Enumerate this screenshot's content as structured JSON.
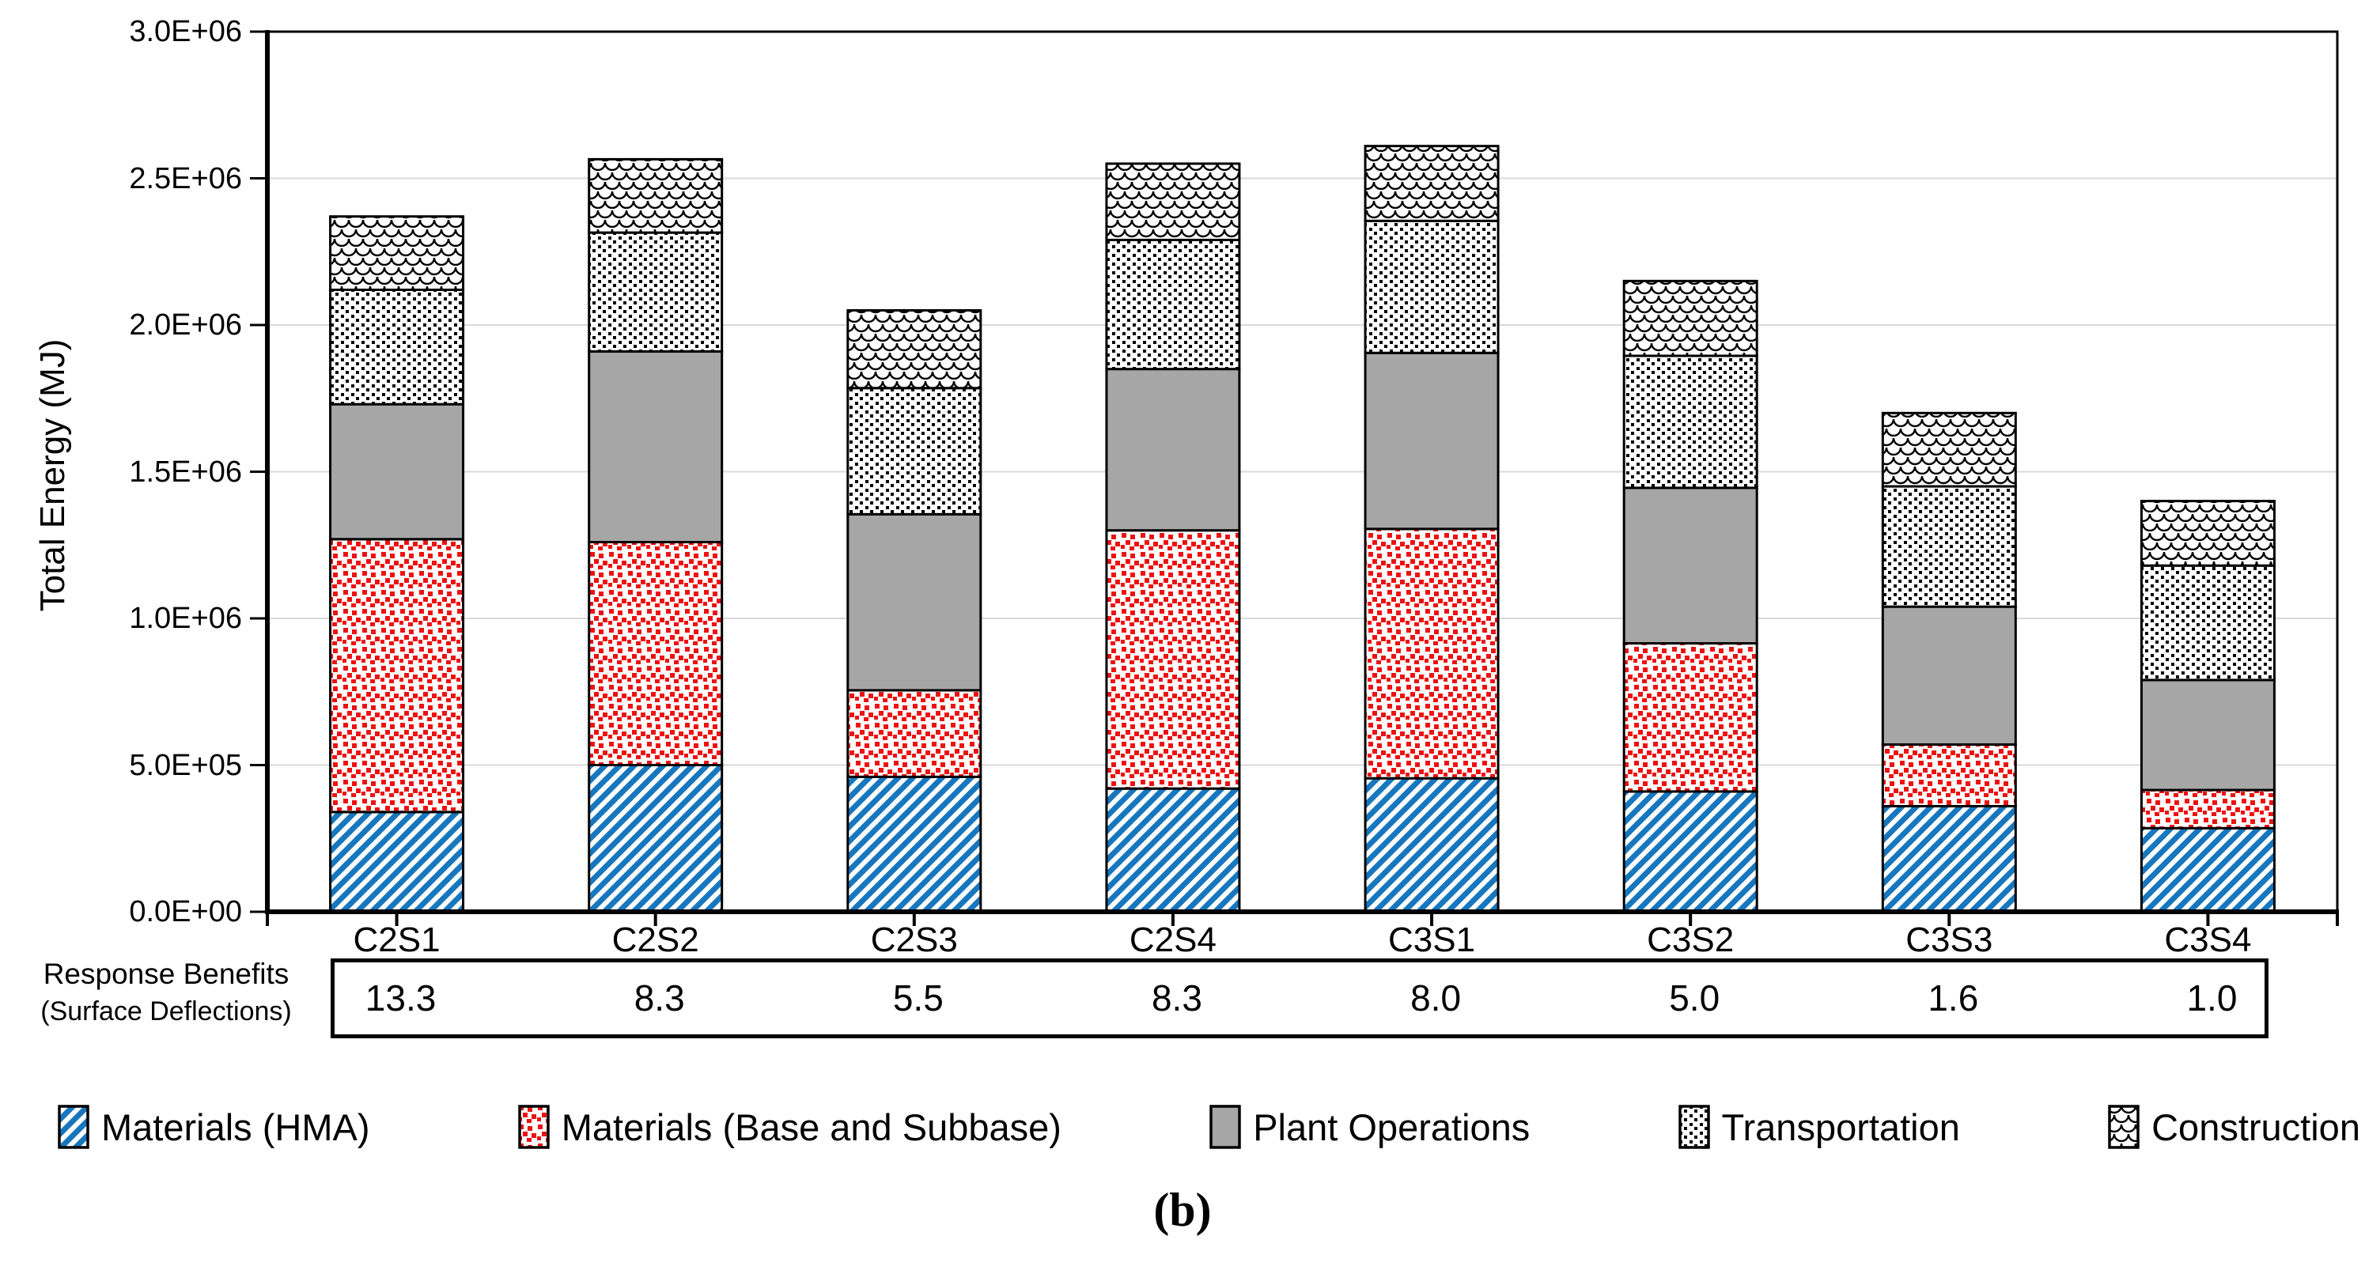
{
  "caption": "(b)",
  "colors": {
    "hma_blue": "#1777BE",
    "base_red": "#EE1111",
    "plant_gray": "#A6A6A6",
    "pattern_black": "#000000",
    "gridline": "#D9D9D9",
    "axis": "#000000",
    "background": "#FFFFFF"
  },
  "chart_data": {
    "type": "bar",
    "stacked": true,
    "title": "",
    "xlabel": "",
    "ylabel": "Total Energy (MJ)",
    "ylim": [
      0,
      3000000
    ],
    "ytick_step": 500000,
    "ytick_labels": [
      "0.0E+00",
      "5.0E+05",
      "1.0E+06",
      "1.5E+06",
      "2.0E+06",
      "2.5E+06",
      "3.0E+06"
    ],
    "grid": true,
    "legend_position": "bottom",
    "categories": [
      "C2S1",
      "C2S2",
      "C2S3",
      "C2S4",
      "C3S1",
      "C3S2",
      "C3S3",
      "C3S4"
    ],
    "series": [
      {
        "name": "Materials (HMA)",
        "pattern": "blue-diagonal-hatch",
        "values": [
          340000,
          500000,
          460000,
          420000,
          455000,
          410000,
          360000,
          285000
        ]
      },
      {
        "name": "Materials (Base and Subbase)",
        "pattern": "red-dots",
        "values": [
          930000,
          760000,
          295000,
          880000,
          850000,
          505000,
          210000,
          130000
        ]
      },
      {
        "name": "Plant Operations",
        "pattern": "solid-gray",
        "values": [
          460000,
          650000,
          600000,
          550000,
          600000,
          530000,
          470000,
          375000
        ]
      },
      {
        "name": "Transportation",
        "pattern": "black-dots",
        "values": [
          390000,
          405000,
          430000,
          440000,
          450000,
          450000,
          410000,
          390000
        ]
      },
      {
        "name": "Construction",
        "pattern": "scales",
        "values": [
          250000,
          250000,
          265000,
          260000,
          255000,
          255000,
          250000,
          220000
        ]
      }
    ],
    "annotation_table": {
      "label_line1": "Response Benefits",
      "label_line2": "(Surface Deflections)",
      "values": [
        "13.3",
        "8.3",
        "5.5",
        "8.3",
        "8.0",
        "5.0",
        "1.6",
        "1.0"
      ]
    }
  }
}
